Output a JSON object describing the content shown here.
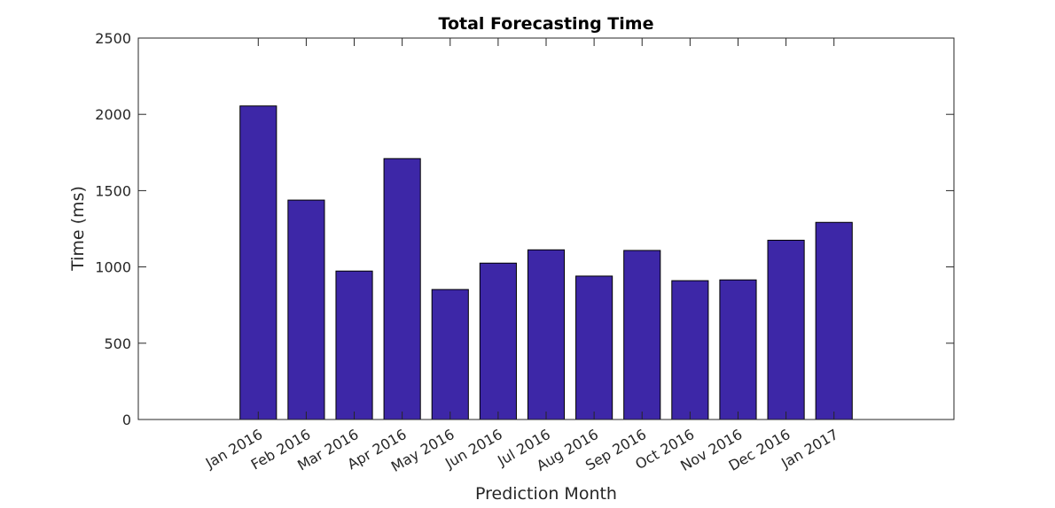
{
  "chart_data": {
    "type": "bar",
    "title": "Total Forecasting Time",
    "xlabel": "Prediction Month",
    "ylabel": "Time (ms)",
    "categories": [
      "Jan 2016",
      "Feb 2016",
      "Mar 2016",
      "Apr 2016",
      "May 2016",
      "Jun 2016",
      "Jul 2016",
      "Aug 2016",
      "Sep 2016",
      "Oct 2016",
      "Nov 2016",
      "Dec 2016",
      "Jan 2017"
    ],
    "values": [
      2055,
      1438,
      973,
      1710,
      852,
      1025,
      1112,
      940,
      1108,
      910,
      915,
      1175,
      1292
    ],
    "ylim": [
      0,
      2500
    ],
    "yticks": [
      0,
      500,
      1000,
      1500,
      2000,
      2500
    ],
    "bar_color": "#3d27a7",
    "grid": false,
    "legend": "none"
  }
}
